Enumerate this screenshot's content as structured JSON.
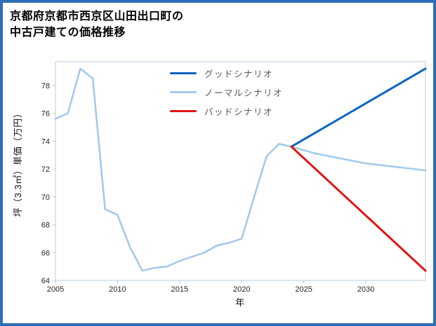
{
  "title": {
    "line1": "京都府京都市西京区山田出口町の",
    "line2": "中古戸建ての価格推移"
  },
  "frame_color": "#2e6db8",
  "chart_data": {
    "type": "line",
    "title": "京都府京都市西京区山田出口町の中古戸建ての価格推移",
    "xlabel": "年",
    "ylabel": "坪（3.3㎡）単価（万円）",
    "xlim": [
      2005,
      2034.8
    ],
    "ylim": [
      64,
      79.7
    ],
    "xticks": [
      2005,
      2010,
      2015,
      2020,
      2025,
      2030
    ],
    "yticks": [
      64,
      66,
      68,
      70,
      72,
      74,
      76,
      78
    ],
    "grid": false,
    "axis_color": "#b7cde2",
    "legend_position": "upper-center inside plot",
    "legend": [
      "グッドシナリオ",
      "ノーマルシナリオ",
      "バッドシナリオ"
    ],
    "series": [
      {
        "id": "good-scenario",
        "name": "グッドシナリオ",
        "color": "#0e63be",
        "width": 3,
        "points": [
          [
            2024,
            73.6
          ],
          [
            2034.8,
            79.2
          ]
        ]
      },
      {
        "id": "normal-scenario",
        "name": "ノーマルシナリオ",
        "color": "#a4caec",
        "width": 2.6,
        "points": [
          [
            2005,
            75.6
          ],
          [
            2006,
            76.0
          ],
          [
            2007,
            79.2
          ],
          [
            2008,
            78.5
          ],
          [
            2009,
            69.1
          ],
          [
            2010,
            68.7
          ],
          [
            2011,
            66.4
          ],
          [
            2012,
            64.7
          ],
          [
            2013,
            64.9
          ],
          [
            2014,
            65.0
          ],
          [
            2015,
            65.4
          ],
          [
            2016,
            65.7
          ],
          [
            2017,
            66.0
          ],
          [
            2018,
            66.5
          ],
          [
            2019,
            66.7
          ],
          [
            2020,
            67.0
          ],
          [
            2021,
            70.0
          ],
          [
            2022,
            72.9
          ],
          [
            2023,
            73.8
          ],
          [
            2024,
            73.6
          ],
          [
            2026,
            73.1
          ],
          [
            2030,
            72.4
          ],
          [
            2034.8,
            71.9
          ]
        ]
      },
      {
        "id": "bad-scenario",
        "name": "バッドシナリオ",
        "color": "#e21414",
        "width": 3,
        "points": [
          [
            2024,
            73.6
          ],
          [
            2034.8,
            64.7
          ]
        ]
      }
    ]
  }
}
